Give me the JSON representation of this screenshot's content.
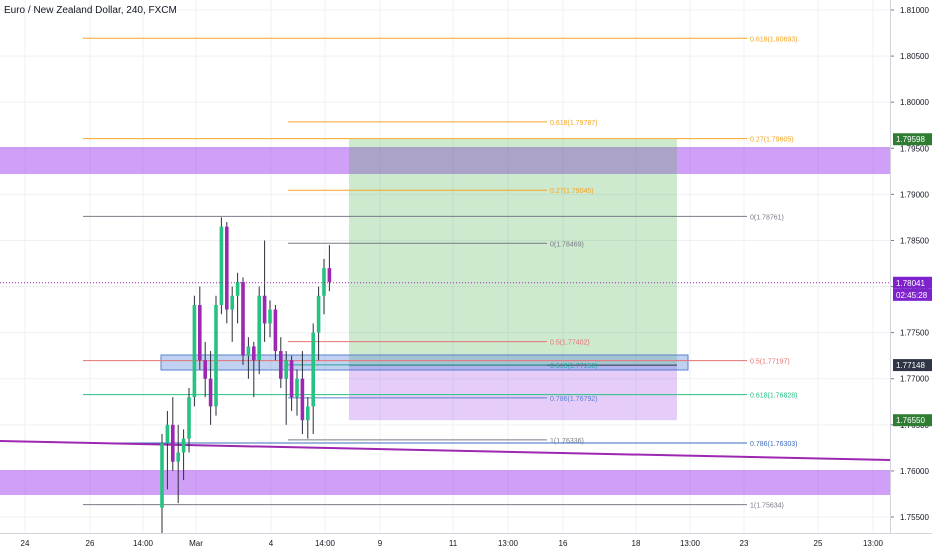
{
  "title": "Euro / New Zealand Dollar, 240, FXCM",
  "colors": {
    "up": "#26c281",
    "down": "#9c27b0",
    "zone": "#c77dff",
    "zone_fill": "rgba(170,80,240,0.55)",
    "green_box": "rgba(76,175,80,0.28)",
    "purple_box": "rgba(186,120,240,0.38)",
    "blue_box": "rgba(100,140,220,0.40)",
    "trendline": "#9c27b0",
    "orange": "#f5a623",
    "grid": "#eef0f3",
    "crosshair": "#9c27b0"
  },
  "price_axis": {
    "ticks": [
      "1.81000",
      "1.80500",
      "1.80000",
      "1.79500",
      "1.79000",
      "1.78500",
      "1.78000",
      "1.77500",
      "1.77000",
      "1.76500",
      "1.76000",
      "1.75500"
    ],
    "badges": [
      {
        "label": "1.79598",
        "color": "#2e7d32",
        "text_color": "#ffffff",
        "price": 1.79598
      },
      {
        "label": "1.78041",
        "color": "#7e22ce",
        "text_color": "#ffffff",
        "price": 1.78041
      },
      {
        "label": "02:45:28",
        "color": "#7e22ce",
        "text_color": "#ffffff",
        "price": 1.7791
      },
      {
        "label": "1.77148",
        "color": "#2f3645",
        "text_color": "#ffffff",
        "price": 1.77148
      },
      {
        "label": "1.76550",
        "color": "#2e7d32",
        "text_color": "#ffffff",
        "price": 1.7655
      }
    ]
  },
  "time_axis": {
    "labels": [
      "24",
      "26",
      "14:00",
      "Mar",
      "4",
      "14:00",
      "9",
      "11",
      "13:00",
      "16",
      "18",
      "13:00",
      "23",
      "25",
      "13:00"
    ]
  },
  "fib_levels": [
    {
      "label": "0.618(1.80693)",
      "price": 1.80693,
      "color": "#f5a623",
      "x1": 83,
      "x2": 750,
      "side": "right"
    },
    {
      "label": "0.618(1.79787)",
      "price": 1.79787,
      "color": "#f5a623",
      "x1": 288,
      "x2": 550,
      "side": "right"
    },
    {
      "label": "0.27(1.79605)",
      "price": 1.79605,
      "color": "#f5a623",
      "x1": 83,
      "x2": 750,
      "side": "right"
    },
    {
      "label": "0.27(1.79045)",
      "price": 1.79045,
      "color": "#f5a623",
      "x1": 288,
      "x2": 550,
      "side": "right"
    },
    {
      "label": "0(1.78761)",
      "price": 1.78761,
      "color": "#787b86",
      "x1": 83,
      "x2": 750,
      "side": "right"
    },
    {
      "label": "0(1.78469)",
      "price": 1.78469,
      "color": "#787b86",
      "x1": 288,
      "x2": 550,
      "side": "right"
    },
    {
      "label": "0.5(1.77402)",
      "price": 1.77402,
      "color": "#e57373",
      "x1": 288,
      "x2": 550,
      "side": "right"
    },
    {
      "label": "0.5(1.77197)",
      "price": 1.77197,
      "color": "#e57373",
      "x1": 83,
      "x2": 750,
      "side": "right"
    },
    {
      "label": "0.618(1.77150)",
      "price": 1.7715,
      "color": "#26a69a",
      "x1": 288,
      "x2": 550,
      "side": "right"
    },
    {
      "label": "0.618(1.76828)",
      "price": 1.76828,
      "color": "#26c281",
      "x1": 83,
      "x2": 750,
      "side": "right"
    },
    {
      "label": "0.786(1.76792)",
      "price": 1.76792,
      "color": "#5b7fcf",
      "x1": 288,
      "x2": 550,
      "side": "right"
    },
    {
      "label": "1(1.76336)",
      "price": 1.76336,
      "color": "#787b86",
      "x1": 288,
      "x2": 550,
      "side": "right"
    },
    {
      "label": "0.786(1.76303)",
      "price": 1.76303,
      "color": "#3f6bbf",
      "x1": 83,
      "x2": 750,
      "side": "right"
    },
    {
      "label": "1(1.75634)",
      "price": 1.75634,
      "color": "#787b86",
      "x1": 83,
      "x2": 750,
      "side": "right"
    }
  ],
  "current_price": 1.78041,
  "candles": [
    {
      "o": 1.756,
      "h": 1.764,
      "l": 1.752,
      "c": 1.763
    },
    {
      "o": 1.763,
      "h": 1.7665,
      "l": 1.758,
      "c": 1.765
    },
    {
      "o": 1.765,
      "h": 1.768,
      "l": 1.76,
      "c": 1.761
    },
    {
      "o": 1.761,
      "h": 1.765,
      "l": 1.7565,
      "c": 1.762
    },
    {
      "o": 1.762,
      "h": 1.7645,
      "l": 1.759,
      "c": 1.7635
    },
    {
      "o": 1.7635,
      "h": 1.769,
      "l": 1.762,
      "c": 1.768
    },
    {
      "o": 1.768,
      "h": 1.779,
      "l": 1.767,
      "c": 1.778
    },
    {
      "o": 1.778,
      "h": 1.78,
      "l": 1.771,
      "c": 1.772
    },
    {
      "o": 1.772,
      "h": 1.774,
      "l": 1.768,
      "c": 1.77
    },
    {
      "o": 1.77,
      "h": 1.773,
      "l": 1.765,
      "c": 1.767
    },
    {
      "o": 1.767,
      "h": 1.779,
      "l": 1.766,
      "c": 1.778
    },
    {
      "o": 1.778,
      "h": 1.7875,
      "l": 1.777,
      "c": 1.7865
    },
    {
      "o": 1.7865,
      "h": 1.787,
      "l": 1.776,
      "c": 1.7775
    },
    {
      "o": 1.7775,
      "h": 1.78,
      "l": 1.774,
      "c": 1.779
    },
    {
      "o": 1.779,
      "h": 1.7815,
      "l": 1.776,
      "c": 1.7805
    },
    {
      "o": 1.7805,
      "h": 1.781,
      "l": 1.7715,
      "c": 1.7725
    },
    {
      "o": 1.7725,
      "h": 1.7745,
      "l": 1.77,
      "c": 1.7735
    },
    {
      "o": 1.7735,
      "h": 1.774,
      "l": 1.768,
      "c": 1.772
    },
    {
      "o": 1.772,
      "h": 1.78,
      "l": 1.7705,
      "c": 1.779
    },
    {
      "o": 1.779,
      "h": 1.785,
      "l": 1.774,
      "c": 1.776
    },
    {
      "o": 1.776,
      "h": 1.7785,
      "l": 1.7745,
      "c": 1.7775
    },
    {
      "o": 1.7775,
      "h": 1.778,
      "l": 1.772,
      "c": 1.773
    },
    {
      "o": 1.773,
      "h": 1.7745,
      "l": 1.769,
      "c": 1.77
    },
    {
      "o": 1.77,
      "h": 1.773,
      "l": 1.765,
      "c": 1.772
    },
    {
      "o": 1.772,
      "h": 1.7725,
      "l": 1.7665,
      "c": 1.768
    },
    {
      "o": 1.768,
      "h": 1.771,
      "l": 1.766,
      "c": 1.77
    },
    {
      "o": 1.77,
      "h": 1.773,
      "l": 1.764,
      "c": 1.7655
    },
    {
      "o": 1.7655,
      "h": 1.768,
      "l": 1.7635,
      "c": 1.767
    },
    {
      "o": 1.767,
      "h": 1.776,
      "l": 1.764,
      "c": 1.775
    },
    {
      "o": 1.775,
      "h": 1.78,
      "l": 1.772,
      "c": 1.779
    },
    {
      "o": 1.779,
      "h": 1.783,
      "l": 1.777,
      "c": 1.782
    },
    {
      "o": 1.782,
      "h": 1.7845,
      "l": 1.7795,
      "c": 1.7805
    }
  ]
}
